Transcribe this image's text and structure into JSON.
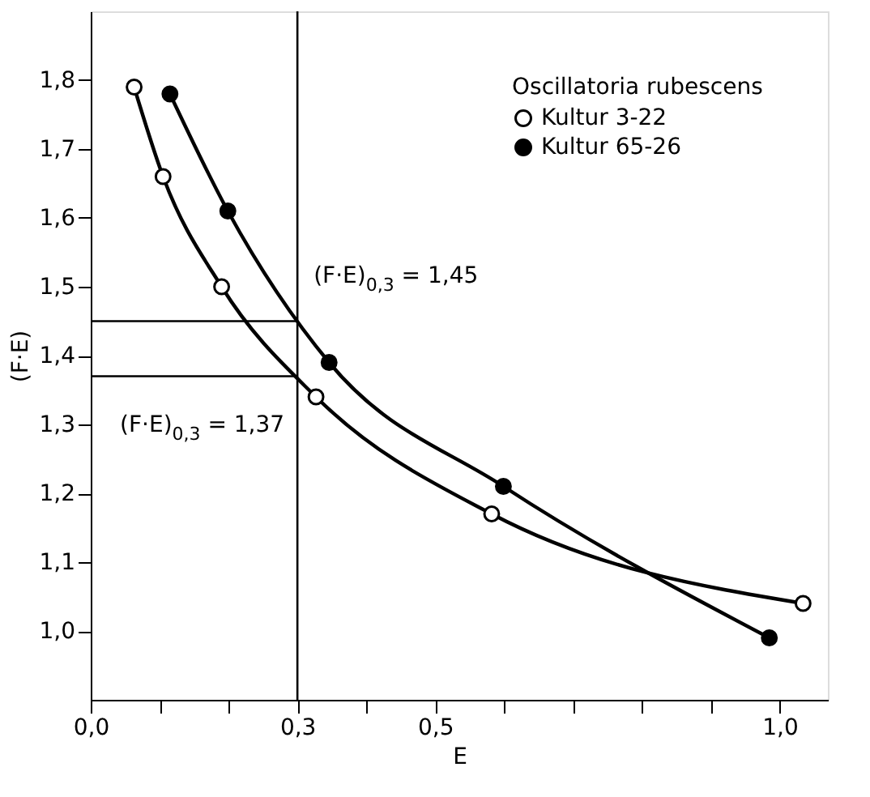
{
  "chart_data": {
    "type": "line",
    "xlabel": "E",
    "ylabel": "(F·E)",
    "legend_title": "Oscillatoria rubescens",
    "legend": "top right",
    "marker": "circle",
    "grid": false,
    "xlim": [
      0,
      1.07
    ],
    "ylim": [
      0.9,
      1.9
    ],
    "xticks": [
      {
        "value": 0,
        "label": "0,0"
      },
      {
        "value": 0.1,
        "label": null
      },
      {
        "value": 0.2,
        "label": null
      },
      {
        "value": 0.3,
        "label": "0,3"
      },
      {
        "value": 0.4,
        "label": null
      },
      {
        "value": 0.5,
        "label": "0,5"
      },
      {
        "value": 0.6,
        "label": null
      },
      {
        "value": 0.7,
        "label": null
      },
      {
        "value": 0.8,
        "label": null
      },
      {
        "value": 0.9,
        "label": null
      },
      {
        "value": 1.0,
        "label": "1,0"
      }
    ],
    "yticks": [
      {
        "value": 1.0,
        "label": "1,0"
      },
      {
        "value": 1.1,
        "label": "1,1"
      },
      {
        "value": 1.2,
        "label": "1,2"
      },
      {
        "value": 1.3,
        "label": "1,3"
      },
      {
        "value": 1.4,
        "label": "1,4"
      },
      {
        "value": 1.5,
        "label": "1,5"
      },
      {
        "value": 1.6,
        "label": "1,6"
      },
      {
        "value": 1.7,
        "label": "1,7"
      },
      {
        "value": 1.8,
        "label": "1,8"
      }
    ],
    "series": [
      {
        "name": "Kultur 3-22",
        "color": "#000000",
        "x": [
          0.063,
          0.105,
          0.19,
          0.327,
          0.582,
          1.034
        ],
        "values": [
          1.79,
          1.66,
          1.5,
          1.34,
          1.17,
          1.04
        ]
      },
      {
        "name": "Kultur 65-26",
        "color": "#000000",
        "x": [
          0.115,
          0.199,
          0.346,
          0.599,
          0.985
        ],
        "values": [
          1.78,
          1.61,
          1.39,
          1.21,
          0.99
        ]
      }
    ],
    "ref_lines": [
      {
        "axis": "x",
        "value": 0.3
      },
      {
        "axis": "y",
        "value": 1.45
      },
      {
        "axis": "y",
        "value": 1.37
      }
    ],
    "annotations": [
      {
        "text": "(F·E)$_{0,3}$ = 1,45",
        "x": 0.3,
        "y": 1.45
      },
      {
        "text": "(F·E)$_{0,3}$ = 1,37",
        "x": 0.3,
        "y": 1.37
      }
    ]
  }
}
